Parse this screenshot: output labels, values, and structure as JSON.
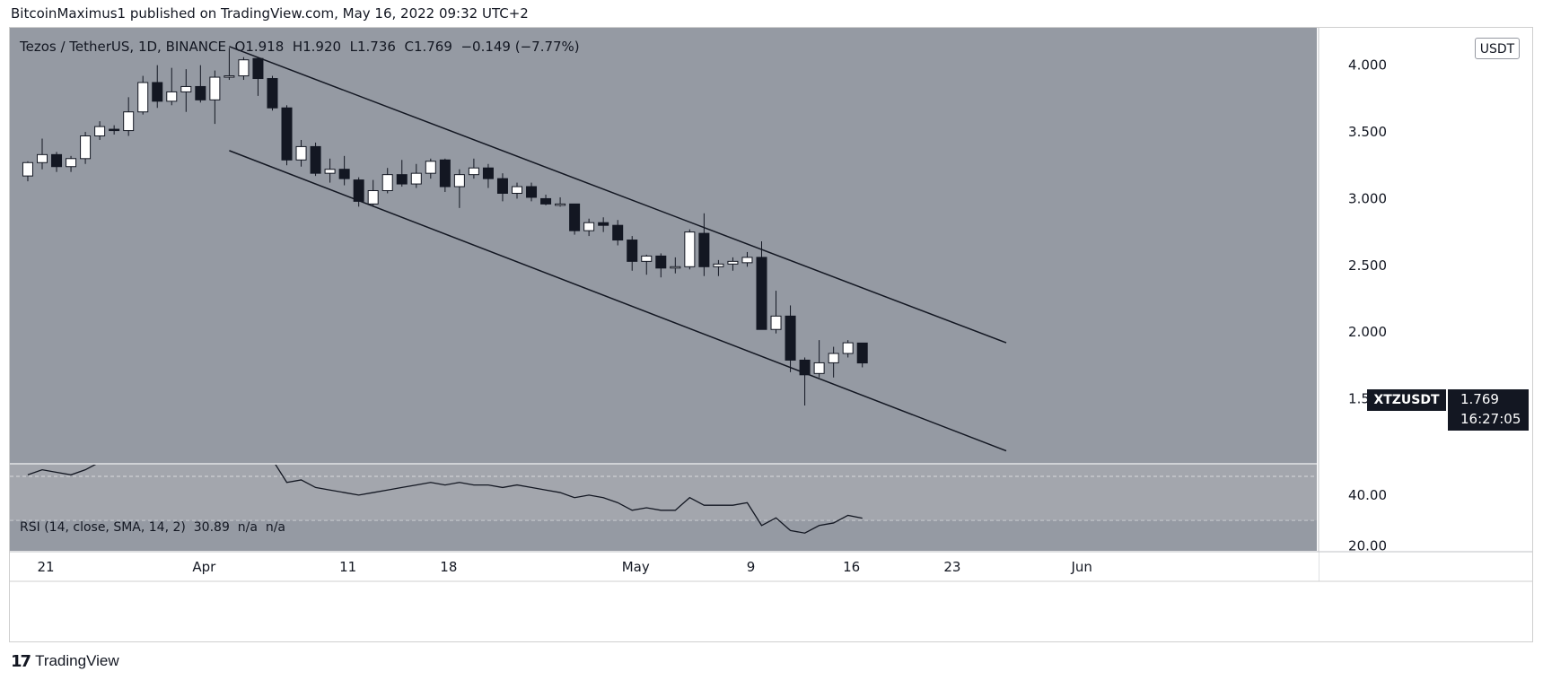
{
  "header": {
    "publisher_line": "BitcoinMaximus1 published on TradingView.com, May 16, 2022 09:32 UTC+2"
  },
  "legend": {
    "symbol": "Tezos / TetherUS, 1D, BINANCE",
    "o_label": "O",
    "o_value": "1.918",
    "h_label": "H",
    "h_value": "1.920",
    "l_label": "L",
    "l_value": "1.736",
    "c_label": "C",
    "c_value": "1.769",
    "change": "−0.149 (−7.77%)"
  },
  "currency": "USDT",
  "last_price": {
    "symbol": "XTZUSDT",
    "price": "1.769",
    "countdown": "16:27:05"
  },
  "rsi_legend": {
    "title": "RSI (14, close, SMA, 14, 2)",
    "value": "30.89",
    "n1": "n/a",
    "n2": "n/a"
  },
  "footer": {
    "brand": "TradingView",
    "logo": "17"
  },
  "colors": {
    "background": "#959aa3",
    "rsi_band": "#a3a6ad",
    "up": "#ffffff",
    "down": "#131722",
    "line": "#131722"
  },
  "chart_data": {
    "type": "candlestick",
    "price_ticks": [
      "4.000",
      "3.500",
      "3.000",
      "2.500",
      "2.000",
      "1.500"
    ],
    "price_tick_values": [
      4.0,
      3.5,
      3.0,
      2.5,
      2.0,
      1.5
    ],
    "ylim": [
      1.02,
      4.28
    ],
    "rsi_ticks": [
      "40.00",
      "20.00"
    ],
    "rsi_tick_values": [
      40,
      20
    ],
    "rsi_ylim": [
      18,
      52
    ],
    "date_ticks": [
      {
        "label": "21",
        "day": 0
      },
      {
        "label": "Apr",
        "day": 11
      },
      {
        "label": "11",
        "day": 21
      },
      {
        "label": "18",
        "day": 28
      },
      {
        "label": "May",
        "day": 41
      },
      {
        "label": "9",
        "day": 49
      },
      {
        "label": "16",
        "day": 56
      },
      {
        "label": "23",
        "day": 63
      },
      {
        "label": "Jun",
        "day": 72
      }
    ],
    "candles": [
      {
        "day": -1,
        "o": 3.17,
        "h": 3.28,
        "l": 3.13,
        "c": 3.27
      },
      {
        "day": 0,
        "o": 3.27,
        "h": 3.45,
        "l": 3.22,
        "c": 3.33
      },
      {
        "day": 1,
        "o": 3.33,
        "h": 3.35,
        "l": 3.2,
        "c": 3.24
      },
      {
        "day": 2,
        "o": 3.24,
        "h": 3.32,
        "l": 3.2,
        "c": 3.3
      },
      {
        "day": 3,
        "o": 3.3,
        "h": 3.5,
        "l": 3.26,
        "c": 3.47
      },
      {
        "day": 4,
        "o": 3.47,
        "h": 3.58,
        "l": 3.44,
        "c": 3.54
      },
      {
        "day": 5,
        "o": 3.52,
        "h": 3.55,
        "l": 3.48,
        "c": 3.51
      },
      {
        "day": 6,
        "o": 3.51,
        "h": 3.76,
        "l": 3.47,
        "c": 3.65
      },
      {
        "day": 7,
        "o": 3.65,
        "h": 3.92,
        "l": 3.63,
        "c": 3.87
      },
      {
        "day": 8,
        "o": 3.87,
        "h": 4.0,
        "l": 3.68,
        "c": 3.73
      },
      {
        "day": 9,
        "o": 3.73,
        "h": 3.98,
        "l": 3.7,
        "c": 3.8
      },
      {
        "day": 10,
        "o": 3.8,
        "h": 3.97,
        "l": 3.65,
        "c": 3.84
      },
      {
        "day": 11,
        "o": 3.84,
        "h": 4.0,
        "l": 3.72,
        "c": 3.74
      },
      {
        "day": 12,
        "o": 3.74,
        "h": 3.96,
        "l": 3.56,
        "c": 3.91
      },
      {
        "day": 13,
        "o": 3.91,
        "h": 4.13,
        "l": 3.89,
        "c": 3.92
      },
      {
        "day": 14,
        "o": 3.92,
        "h": 4.06,
        "l": 3.89,
        "c": 4.04
      },
      {
        "day": 15,
        "o": 4.05,
        "h": 4.06,
        "l": 3.77,
        "c": 3.9
      },
      {
        "day": 16,
        "o": 3.9,
        "h": 3.92,
        "l": 3.66,
        "c": 3.68
      },
      {
        "day": 17,
        "o": 3.68,
        "h": 3.7,
        "l": 3.25,
        "c": 3.29
      },
      {
        "day": 18,
        "o": 3.29,
        "h": 3.44,
        "l": 3.24,
        "c": 3.39
      },
      {
        "day": 19,
        "o": 3.39,
        "h": 3.42,
        "l": 3.17,
        "c": 3.19
      },
      {
        "day": 20,
        "o": 3.19,
        "h": 3.3,
        "l": 3.12,
        "c": 3.22
      },
      {
        "day": 21,
        "o": 3.22,
        "h": 3.32,
        "l": 3.1,
        "c": 3.15
      },
      {
        "day": 22,
        "o": 3.14,
        "h": 3.16,
        "l": 2.94,
        "c": 2.98
      },
      {
        "day": 23,
        "o": 2.96,
        "h": 3.14,
        "l": 2.94,
        "c": 3.06
      },
      {
        "day": 24,
        "o": 3.06,
        "h": 3.23,
        "l": 3.04,
        "c": 3.18
      },
      {
        "day": 25,
        "o": 3.18,
        "h": 3.29,
        "l": 3.09,
        "c": 3.11
      },
      {
        "day": 26,
        "o": 3.11,
        "h": 3.26,
        "l": 3.08,
        "c": 3.19
      },
      {
        "day": 27,
        "o": 3.19,
        "h": 3.3,
        "l": 3.15,
        "c": 3.28
      },
      {
        "day": 28,
        "o": 3.29,
        "h": 3.3,
        "l": 3.05,
        "c": 3.09
      },
      {
        "day": 29,
        "o": 3.09,
        "h": 3.22,
        "l": 2.93,
        "c": 3.18
      },
      {
        "day": 30,
        "o": 3.18,
        "h": 3.3,
        "l": 3.15,
        "c": 3.23
      },
      {
        "day": 31,
        "o": 3.23,
        "h": 3.26,
        "l": 3.08,
        "c": 3.15
      },
      {
        "day": 32,
        "o": 3.15,
        "h": 3.19,
        "l": 2.98,
        "c": 3.04
      },
      {
        "day": 33,
        "o": 3.04,
        "h": 3.12,
        "l": 3.0,
        "c": 3.09
      },
      {
        "day": 34,
        "o": 3.09,
        "h": 3.12,
        "l": 2.98,
        "c": 3.01
      },
      {
        "day": 35,
        "o": 3.0,
        "h": 3.03,
        "l": 2.95,
        "c": 2.96
      },
      {
        "day": 36,
        "o": 2.96,
        "h": 3.01,
        "l": 2.94,
        "c": 2.96
      },
      {
        "day": 37,
        "o": 2.96,
        "h": 2.96,
        "l": 2.73,
        "c": 2.76
      },
      {
        "day": 38,
        "o": 2.76,
        "h": 2.85,
        "l": 2.72,
        "c": 2.82
      },
      {
        "day": 39,
        "o": 2.82,
        "h": 2.86,
        "l": 2.75,
        "c": 2.8
      },
      {
        "day": 40,
        "o": 2.8,
        "h": 2.84,
        "l": 2.65,
        "c": 2.69
      },
      {
        "day": 41,
        "o": 2.69,
        "h": 2.72,
        "l": 2.46,
        "c": 2.53
      },
      {
        "day": 42,
        "o": 2.53,
        "h": 2.58,
        "l": 2.43,
        "c": 2.57
      },
      {
        "day": 43,
        "o": 2.57,
        "h": 2.59,
        "l": 2.41,
        "c": 2.48
      },
      {
        "day": 44,
        "o": 2.48,
        "h": 2.56,
        "l": 2.44,
        "c": 2.49
      },
      {
        "day": 45,
        "o": 2.49,
        "h": 2.77,
        "l": 2.47,
        "c": 2.75
      },
      {
        "day": 46,
        "o": 2.74,
        "h": 2.89,
        "l": 2.42,
        "c": 2.49
      },
      {
        "day": 47,
        "o": 2.49,
        "h": 2.54,
        "l": 2.42,
        "c": 2.51
      },
      {
        "day": 48,
        "o": 2.51,
        "h": 2.56,
        "l": 2.46,
        "c": 2.53
      },
      {
        "day": 49,
        "o": 2.52,
        "h": 2.6,
        "l": 2.49,
        "c": 2.56
      },
      {
        "day": 50,
        "o": 2.56,
        "h": 2.68,
        "l": 2.02,
        "c": 2.02
      },
      {
        "day": 51,
        "o": 2.02,
        "h": 2.31,
        "l": 1.99,
        "c": 2.12
      },
      {
        "day": 52,
        "o": 2.12,
        "h": 2.2,
        "l": 1.7,
        "c": 1.79
      },
      {
        "day": 53,
        "o": 1.79,
        "h": 1.81,
        "l": 1.45,
        "c": 1.68
      },
      {
        "day": 54,
        "o": 1.69,
        "h": 1.94,
        "l": 1.66,
        "c": 1.77
      },
      {
        "day": 55,
        "o": 1.77,
        "h": 1.89,
        "l": 1.66,
        "c": 1.84
      },
      {
        "day": 56,
        "o": 1.84,
        "h": 1.94,
        "l": 1.81,
        "c": 1.92
      },
      {
        "day": 57,
        "o": 1.918,
        "h": 1.92,
        "l": 1.736,
        "c": 1.769
      }
    ],
    "trendlines": [
      {
        "name": "upper-channel",
        "p1": {
          "day": 13,
          "price": 4.14
        },
        "p2": {
          "day": 67,
          "price": 1.92
        }
      },
      {
        "name": "lower-channel",
        "p1": {
          "day": 13,
          "price": 3.36
        },
        "p2": {
          "day": 67,
          "price": 1.11
        }
      }
    ],
    "rsi": [
      [
        -1,
        48
      ],
      [
        0,
        50
      ],
      [
        1,
        49
      ],
      [
        2,
        48
      ],
      [
        3,
        50
      ],
      [
        4,
        53
      ],
      [
        5,
        57
      ],
      [
        6,
        60
      ],
      [
        7,
        62
      ],
      [
        8,
        64
      ],
      [
        9,
        64
      ],
      [
        10,
        65
      ],
      [
        11,
        64
      ],
      [
        12,
        66
      ],
      [
        13,
        66
      ],
      [
        14,
        66
      ],
      [
        15,
        62
      ],
      [
        16,
        54
      ],
      [
        17,
        45
      ],
      [
        18,
        46
      ],
      [
        19,
        43
      ],
      [
        20,
        42
      ],
      [
        21,
        41
      ],
      [
        22,
        40
      ],
      [
        23,
        41
      ],
      [
        24,
        42
      ],
      [
        25,
        43
      ],
      [
        26,
        44
      ],
      [
        27,
        45
      ],
      [
        28,
        44
      ],
      [
        29,
        45
      ],
      [
        30,
        44
      ],
      [
        31,
        44
      ],
      [
        32,
        43
      ],
      [
        33,
        44
      ],
      [
        34,
        43
      ],
      [
        35,
        42
      ],
      [
        36,
        41
      ],
      [
        37,
        39
      ],
      [
        38,
        40
      ],
      [
        39,
        39
      ],
      [
        40,
        37
      ],
      [
        41,
        34
      ],
      [
        42,
        35
      ],
      [
        43,
        34
      ],
      [
        44,
        34
      ],
      [
        45,
        39
      ],
      [
        46,
        36
      ],
      [
        47,
        36
      ],
      [
        48,
        36
      ],
      [
        49,
        37
      ],
      [
        50,
        28
      ],
      [
        51,
        31
      ],
      [
        52,
        26
      ],
      [
        53,
        25
      ],
      [
        54,
        28
      ],
      [
        55,
        29
      ],
      [
        56,
        32
      ],
      [
        57,
        30.89
      ]
    ]
  }
}
